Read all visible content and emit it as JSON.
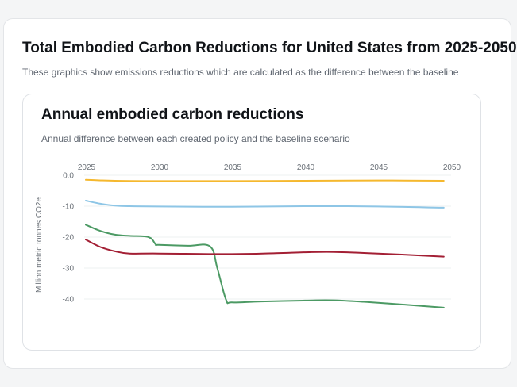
{
  "header": {
    "title": "Total Embodied Carbon Reductions for United States from 2025-2050",
    "subtitle": "These graphics show emissions reductions which are calculated as the difference between the baseline"
  },
  "chart_data": {
    "type": "line",
    "title": "Annual embodied carbon reductions",
    "subtitle": "Annual difference between each created policy and the baseline scenario",
    "xlabel": "",
    "ylabel": "Million metric tonnes CO2e",
    "xlim": [
      2025,
      2050
    ],
    "ylim": [
      -45,
      0
    ],
    "xticks": [
      2025,
      2030,
      2035,
      2040,
      2045,
      2050
    ],
    "xtick_labels": [
      "2025",
      "2030",
      "2035",
      "2040",
      "2045",
      "2050"
    ],
    "yticks": [
      0,
      -10,
      -20,
      -30,
      -40
    ],
    "ytick_labels": [
      "0.0",
      "-10",
      "-20",
      "-30",
      "-40"
    ],
    "grid": true,
    "legend": "none",
    "series": [
      {
        "color": "#f5b82e",
        "x": [
          2025,
          2027,
          2030,
          2035,
          2040,
          2045,
          2049.5
        ],
        "y": [
          -1.5,
          -1.8,
          -1.9,
          -1.9,
          -1.8,
          -1.7,
          -1.8
        ]
      },
      {
        "color": "#8ec6e6",
        "x": [
          2025,
          2026,
          2027,
          2028,
          2030,
          2035,
          2040,
          2045,
          2049.5
        ],
        "y": [
          -8.2,
          -9.2,
          -9.8,
          -10.0,
          -10.1,
          -10.2,
          -10.0,
          -10.1,
          -10.5
        ]
      },
      {
        "color": "#4c9a64",
        "x": [
          2025,
          2026,
          2027,
          2028,
          2029.3,
          2029.8,
          2030,
          2032,
          2033.5,
          2034,
          2034.6,
          2035,
          2037,
          2040,
          2042,
          2045,
          2049.5
        ],
        "y": [
          -16,
          -18,
          -19.2,
          -19.6,
          -20,
          -22.4,
          -22.5,
          -22.8,
          -23.0,
          -30,
          -40.2,
          -41.1,
          -40.8,
          -40.5,
          -40.4,
          -41.2,
          -42.8
        ]
      },
      {
        "color": "#a31f34",
        "x": [
          2025,
          2026,
          2027,
          2028,
          2030,
          2035,
          2038,
          2040,
          2042,
          2045,
          2049.5
        ],
        "y": [
          -20.8,
          -23.2,
          -24.6,
          -25.3,
          -25.3,
          -25.5,
          -25.2,
          -24.9,
          -24.8,
          -25.3,
          -26.3
        ]
      }
    ]
  }
}
